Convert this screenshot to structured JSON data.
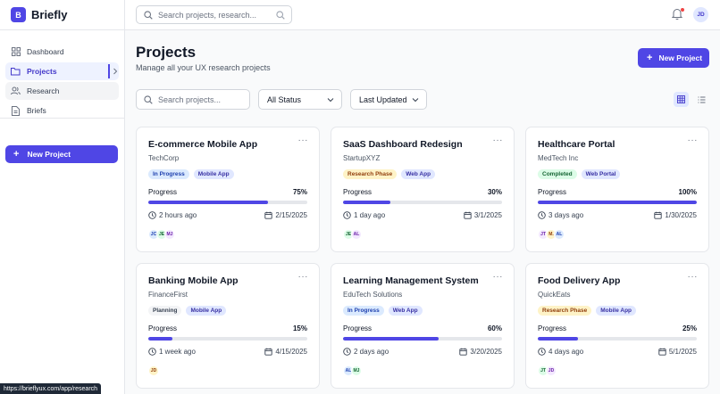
{
  "brand": {
    "logo_letter": "B",
    "name": "Briefly"
  },
  "sidebar": {
    "items": [
      {
        "label": "Dashboard",
        "icon": "dashboard-icon"
      },
      {
        "label": "Projects",
        "icon": "folder-icon"
      },
      {
        "label": "Research",
        "icon": "users-icon"
      },
      {
        "label": "Briefs",
        "icon": "file-text-icon"
      }
    ],
    "new_project_label": "New Project"
  },
  "topbar": {
    "search_placeholder": "Search projects, research...",
    "avatar_initials": "JD"
  },
  "page": {
    "title": "Projects",
    "subtitle": "Manage all your UX research projects",
    "new_project_label": "New Project"
  },
  "filters": {
    "search_placeholder": "Search projects...",
    "status_selected": "All Status",
    "sort_selected": "Last Updated"
  },
  "projects": [
    {
      "title": "E-commerce Mobile App",
      "client": "TechCorp",
      "status": "In Progress",
      "type": "Mobile App",
      "progress_label": "Progress",
      "progress": "75%",
      "progress_fraction": 0.75,
      "updated": "2 hours ago",
      "due": "2/15/2025",
      "members": [
        "JC",
        "JE",
        "MJ"
      ]
    },
    {
      "title": "SaaS Dashboard Redesign",
      "client": "StartupXYZ",
      "status": "Research Phase",
      "type": "Web App",
      "progress_label": "Progress",
      "progress": "30%",
      "progress_fraction": 0.3,
      "updated": "1 day ago",
      "due": "3/1/2025",
      "members": [
        "JE",
        "AL"
      ]
    },
    {
      "title": "Healthcare Portal",
      "client": "MedTech Inc",
      "status": "Completed",
      "type": "Web Portal",
      "progress_label": "Progress",
      "progress": "100%",
      "progress_fraction": 1.0,
      "updated": "3 days ago",
      "due": "1/30/2025",
      "members": [
        "JT",
        "M.",
        "AL"
      ]
    },
    {
      "title": "Banking Mobile App",
      "client": "FinanceFirst",
      "status": "Planning",
      "type": "Mobile App",
      "progress_label": "Progress",
      "progress": "15%",
      "progress_fraction": 0.15,
      "updated": "1 week ago",
      "due": "4/15/2025",
      "members": [
        "JD"
      ]
    },
    {
      "title": "Learning Management System",
      "client": "EduTech Solutions",
      "status": "In Progress",
      "type": "Web App",
      "progress_label": "Progress",
      "progress": "60%",
      "progress_fraction": 0.6,
      "updated": "2 days ago",
      "due": "3/20/2025",
      "members": [
        "AL",
        "MJ"
      ]
    },
    {
      "title": "Food Delivery App",
      "client": "QuickEats",
      "status": "Research Phase",
      "type": "Mobile App",
      "progress_label": "Progress",
      "progress": "25%",
      "progress_fraction": 0.25,
      "updated": "4 days ago",
      "due": "5/1/2025",
      "members": [
        "JT",
        "JD"
      ]
    }
  ],
  "status_bar": {
    "url": "https://brieflyux.com/app/research"
  },
  "colors": {
    "accent": "#4f46e5",
    "notification_dot": "#ef4444"
  }
}
